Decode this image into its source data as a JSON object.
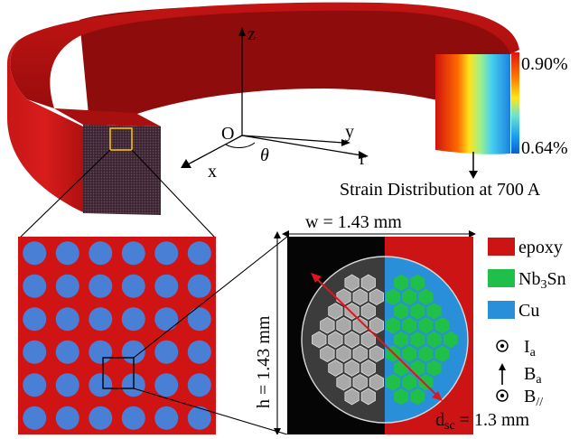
{
  "colorbar": {
    "max_label": "0.90%",
    "min_label": "0.64%"
  },
  "strain_caption": "Strain Distribution at 700 A",
  "axes": {
    "z": "z",
    "origin": "O",
    "y": "y",
    "x": "x",
    "r": "r",
    "theta": "θ"
  },
  "dims": {
    "width_label": "w = 1.43 mm",
    "height_label": "h = 1.43 mm",
    "dsc_main": "d",
    "dsc_sub": "sc",
    "dsc_value": " = 1.3 mm"
  },
  "legend": {
    "epoxy": "epoxy",
    "nb3sn_a": "Nb",
    "nb3sn_sub": "3",
    "nb3sn_b": "Sn",
    "cu": "Cu",
    "ia_main": "I",
    "ia_sub": "a",
    "ba_main": "B",
    "ba_sub": "a",
    "bpar_main": "B",
    "bpar_sub": "//"
  },
  "colors": {
    "epoxy": "#cc1414",
    "nb3sn": "#1fbf4a",
    "cu": "#2a8fd9",
    "filament": "#4a7fd6"
  }
}
